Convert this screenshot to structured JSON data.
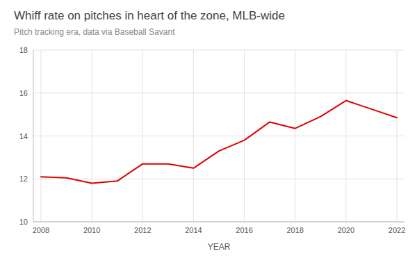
{
  "chart_data": {
    "type": "line",
    "title": "Whiff rate on pitches in heart of the zone, MLB-wide",
    "subtitle": "Pitch tracking era, data via Baseball Savant",
    "x_label": "YEAR",
    "x": [
      2008,
      2009,
      2010,
      2011,
      2012,
      2013,
      2014,
      2015,
      2016,
      2017,
      2018,
      2019,
      2020,
      2021,
      2022
    ],
    "values": [
      12.1,
      12.05,
      11.8,
      11.9,
      12.7,
      12.7,
      12.5,
      13.3,
      13.8,
      14.65,
      14.35,
      14.9,
      15.65,
      15.25,
      14.85
    ],
    "color": "#e00000",
    "xlim": [
      2007.7,
      2022.3
    ],
    "xticks": [
      2008,
      2010,
      2012,
      2014,
      2016,
      2018,
      2020,
      2022
    ],
    "ylim": [
      10,
      18
    ],
    "yticks": [
      10,
      12,
      14,
      16,
      18
    ],
    "grid": true
  }
}
